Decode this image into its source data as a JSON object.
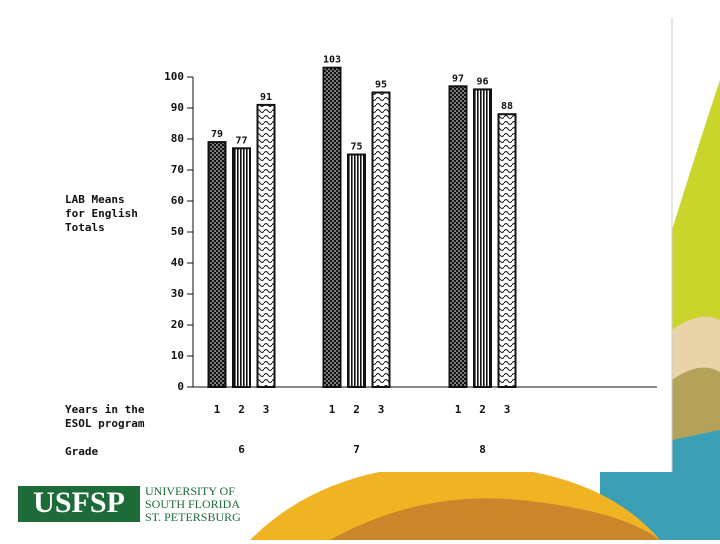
{
  "chart_data": {
    "type": "bar",
    "y_label": [
      "LAB Means",
      "for English",
      "Totals"
    ],
    "x_label": [
      "Years in the",
      "ESOL program"
    ],
    "group_label": "Grade",
    "subcategories": [
      "1",
      "2",
      "3"
    ],
    "groups": [
      {
        "name": "6",
        "values": [
          79,
          77,
          91
        ]
      },
      {
        "name": "7",
        "values": [
          103,
          75,
          95
        ]
      },
      {
        "name": "8",
        "values": [
          97,
          96,
          88
        ]
      }
    ],
    "ylim": [
      0,
      100
    ],
    "yticks": [
      0,
      10,
      20,
      30,
      40,
      50,
      60,
      70,
      80,
      90,
      100
    ]
  },
  "logo": {
    "mark": "USFSP",
    "lines": [
      "UNIVERSITY OF",
      "SOUTH FLORIDA",
      "ST. PETERSBURG"
    ]
  }
}
